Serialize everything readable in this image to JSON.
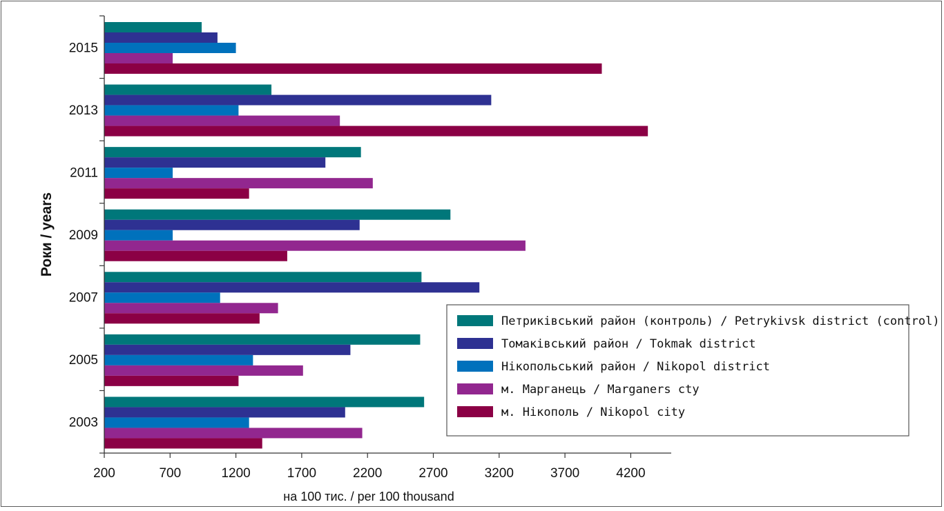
{
  "chart_data": {
    "type": "bar",
    "orientation": "horizontal",
    "title": "",
    "xlabel": "на 100 тис. / per 100 thousand",
    "ylabel": "Роки / years",
    "xlim": [
      200,
      4500
    ],
    "xticks": [
      "200",
      "700",
      "1200",
      "1700",
      "2200",
      "2700",
      "3200",
      "3700",
      "4200"
    ],
    "categories": [
      "2015",
      "2013",
      "2011",
      "2009",
      "2007",
      "2005",
      "2003"
    ],
    "series": [
      {
        "name": "Петриківський район (контроль) / Petrykivsk district (control)",
        "color": "#00777a",
        "values": [
          940,
          1470,
          2150,
          2830,
          2610,
          2600,
          2630
        ]
      },
      {
        "name": "Томаківський район / Tokmak district",
        "color": "#2e3192",
        "values": [
          1060,
          3140,
          1880,
          2140,
          3050,
          2070,
          2030
        ]
      },
      {
        "name": "Нікопольський район / Nikopol district",
        "color": "#0071bc",
        "values": [
          1200,
          1220,
          720,
          720,
          1080,
          1330,
          1300
        ]
      },
      {
        "name": "м. Марганець / Marganers cty",
        "color": "#92278f",
        "values": [
          720,
          1990,
          2240,
          3400,
          1520,
          1710,
          2160
        ]
      },
      {
        "name": "м. Нікополь / Nikopol city",
        "color": "#8b0045",
        "values": [
          3980,
          4330,
          1300,
          1590,
          1380,
          1220,
          1400
        ]
      }
    ],
    "grid": false,
    "legend_position": "bottom-right"
  }
}
